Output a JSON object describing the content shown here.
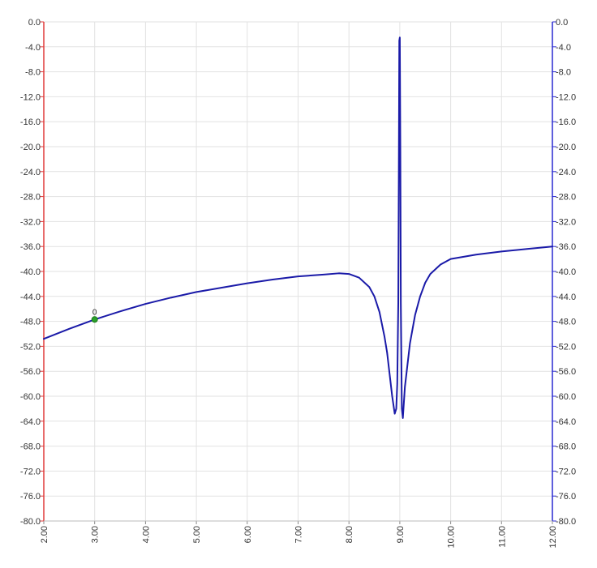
{
  "chart_data": {
    "type": "line",
    "title": "",
    "xlabel": "",
    "ylabel": "",
    "xlim": [
      2.0,
      12.0
    ],
    "ylim": [
      -80.0,
      0.0
    ],
    "grid": true,
    "legend": "none",
    "x_ticks": [
      "2.00",
      "3.00",
      "4.00",
      "5.00",
      "6.00",
      "7.00",
      "8.00",
      "9.00",
      "10.00",
      "11.00",
      "12.00"
    ],
    "y_ticks_left": [
      "0.0",
      "-4.0",
      "-8.0",
      "-12.0",
      "-16.0",
      "-20.0",
      "-24.0",
      "-28.0",
      "-32.0",
      "-36.0",
      "-40.0",
      "-44.0",
      "-48.0",
      "-52.0",
      "-56.0",
      "-60.0",
      "-64.0",
      "-68.0",
      "-72.0",
      "-76.0",
      "-80.0"
    ],
    "y_ticks_right": [
      "0.0",
      "-4.0",
      "-8.0",
      "-12.0",
      "-16.0",
      "-20.0",
      "-24.0",
      "-28.0",
      "-32.0",
      "-36.0",
      "-40.0",
      "-44.0",
      "-48.0",
      "-52.0",
      "-56.0",
      "-60.0",
      "-64.0",
      "-68.0",
      "-72.0",
      "-76.0",
      "-80.0"
    ],
    "series": [
      {
        "color": "#1a1aa8",
        "x": [
          2.0,
          2.5,
          3.0,
          3.5,
          4.0,
          4.5,
          5.0,
          5.5,
          6.0,
          6.5,
          7.0,
          7.5,
          7.8,
          8.0,
          8.2,
          8.4,
          8.5,
          8.6,
          8.7,
          8.75,
          8.8,
          8.85,
          8.9,
          8.93,
          8.95,
          8.97,
          8.98,
          8.99,
          9.0,
          9.01,
          9.02,
          9.04,
          9.06,
          9.08,
          9.1,
          9.15,
          9.2,
          9.3,
          9.4,
          9.5,
          9.6,
          9.8,
          10.0,
          10.5,
          11.0,
          11.5,
          12.0
        ],
        "y": [
          -50.8,
          -49.2,
          -47.7,
          -46.4,
          -45.2,
          -44.2,
          -43.3,
          -42.6,
          -41.9,
          -41.3,
          -40.8,
          -40.5,
          -40.3,
          -40.4,
          -41.0,
          -42.5,
          -44.0,
          -46.5,
          -50.5,
          -53.0,
          -56.5,
          -60.0,
          -62.8,
          -62.0,
          -58.0,
          -45.0,
          -25.0,
          -3.0,
          -2.5,
          -20.0,
          -45.0,
          -62.0,
          -63.5,
          -61.0,
          -58.5,
          -55.0,
          -51.5,
          -47.0,
          -44.0,
          -41.8,
          -40.4,
          -38.9,
          -38.0,
          -37.3,
          -36.8,
          -36.4,
          -36.0
        ]
      }
    ],
    "markers": [
      {
        "label": "0",
        "x": 3.0,
        "y": -47.7,
        "color": "#2aa02a"
      }
    ],
    "left_axis_color": "#e03c3c",
    "right_axis_color": "#2a2ad0",
    "grid_color": "#e2e2e2"
  }
}
